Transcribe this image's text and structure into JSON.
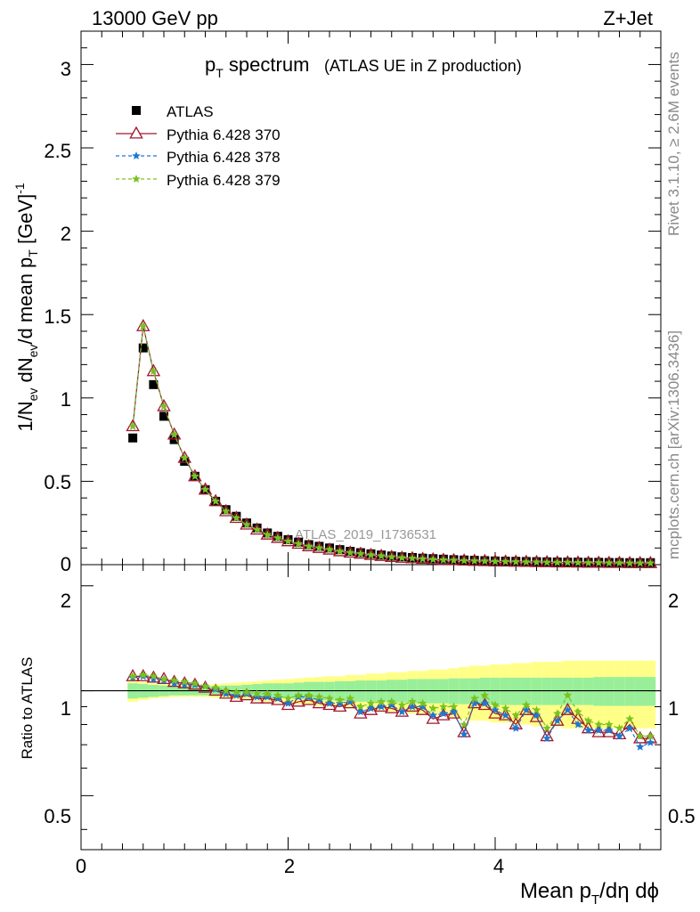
{
  "header": {
    "left": "13000 GeV pp",
    "right": "Z+Jet"
  },
  "title": {
    "main": "p",
    "main_sub": "T",
    "main_rest": " spectrum",
    "detail": "(ATLAS UE in Z production)"
  },
  "side_text": {
    "rivet": "Rivet 3.1.10, ≥ 2.6M events",
    "mcplots": "mcplots.cern.ch [arXiv:1306.3436]"
  },
  "watermark": "ATLAS_2019_I1736531",
  "axes": {
    "xlabel": "Mean p_T/dη dϕ",
    "ylabel_top": "1/N_ev dN_ev/d mean p_T [GeV]^-1",
    "ylabel_bottom": "Ratio to ATLAS",
    "x_ticks": [
      "0",
      "2",
      "4"
    ],
    "y_ticks_top": [
      "0",
      "0.5",
      "1",
      "1.5",
      "2",
      "2.5",
      "3"
    ],
    "y_ticks_bottom": [
      "0.5",
      "1",
      "2"
    ]
  },
  "legend": [
    {
      "label": "ATLAS",
      "color": "#000000",
      "marker": "square"
    },
    {
      "label": "Pythia 6.428 370",
      "color": "#a0182c",
      "marker": "triangle"
    },
    {
      "label": "Pythia 6.428 378",
      "color": "#1e78d2",
      "marker": "star"
    },
    {
      "label": "Pythia 6.428 379",
      "color": "#7ac21e",
      "marker": "star"
    }
  ],
  "chart_data": [
    {
      "type": "scatter",
      "panel": "main",
      "xlim": [
        0,
        5.6
      ],
      "ylim": [
        0,
        3.2
      ],
      "x": [
        0.5,
        0.6,
        0.7,
        0.8,
        0.9,
        1.0,
        1.1,
        1.2,
        1.3,
        1.4,
        1.5,
        1.6,
        1.7,
        1.8,
        1.9,
        2.0,
        2.1,
        2.2,
        2.3,
        2.4,
        2.5,
        2.6,
        2.7,
        2.8,
        2.9,
        3.0,
        3.1,
        3.2,
        3.3,
        3.4,
        3.5,
        3.6,
        3.7,
        3.8,
        3.9,
        4.0,
        4.1,
        4.2,
        4.3,
        4.4,
        4.5,
        4.6,
        4.7,
        4.8,
        4.9,
        5.0,
        5.1,
        5.2,
        5.3,
        5.4,
        5.5
      ],
      "series": [
        {
          "name": "ATLAS",
          "values": [
            0.76,
            1.3,
            1.08,
            0.89,
            0.75,
            0.62,
            0.53,
            0.45,
            0.38,
            0.33,
            0.29,
            0.25,
            0.22,
            0.19,
            0.17,
            0.15,
            0.135,
            0.12,
            0.11,
            0.1,
            0.09,
            0.08,
            0.072,
            0.065,
            0.058,
            0.052,
            0.047,
            0.043,
            0.039,
            0.036,
            0.033,
            0.03,
            0.028,
            0.026,
            0.024,
            0.022,
            0.021,
            0.02,
            0.019,
            0.018,
            0.017,
            0.016,
            0.015,
            0.015,
            0.014,
            0.014,
            0.013,
            0.013,
            0.012,
            0.012,
            0.012
          ]
        },
        {
          "name": "Pythia 6.428 370",
          "values": [
            0.83,
            1.43,
            1.16,
            0.95,
            0.78,
            0.64,
            0.53,
            0.45,
            0.38,
            0.32,
            0.28,
            0.24,
            0.21,
            0.18,
            0.16,
            0.14,
            0.125,
            0.11,
            0.1,
            0.09,
            0.08,
            0.072,
            0.065,
            0.058,
            0.052,
            0.046,
            0.041,
            0.038,
            0.034,
            0.031,
            0.028,
            0.026,
            0.024,
            0.022,
            0.021,
            0.019,
            0.018,
            0.017,
            0.016,
            0.015,
            0.014,
            0.013,
            0.013,
            0.012,
            0.011,
            0.011,
            0.01,
            0.01,
            0.009,
            0.009,
            0.009
          ]
        },
        {
          "name": "Pythia 6.428 378",
          "values": [
            0.83,
            1.43,
            1.16,
            0.95,
            0.78,
            0.64,
            0.53,
            0.45,
            0.38,
            0.32,
            0.28,
            0.24,
            0.21,
            0.18,
            0.16,
            0.14,
            0.125,
            0.11,
            0.1,
            0.09,
            0.08,
            0.072,
            0.065,
            0.058,
            0.052,
            0.046,
            0.041,
            0.038,
            0.034,
            0.031,
            0.028,
            0.026,
            0.024,
            0.022,
            0.021,
            0.019,
            0.018,
            0.017,
            0.016,
            0.015,
            0.014,
            0.013,
            0.013,
            0.012,
            0.011,
            0.011,
            0.01,
            0.01,
            0.009,
            0.009,
            0.009
          ]
        },
        {
          "name": "Pythia 6.428 379",
          "values": [
            0.83,
            1.43,
            1.16,
            0.95,
            0.78,
            0.64,
            0.53,
            0.45,
            0.38,
            0.32,
            0.28,
            0.24,
            0.21,
            0.18,
            0.16,
            0.14,
            0.125,
            0.11,
            0.1,
            0.09,
            0.08,
            0.072,
            0.065,
            0.058,
            0.052,
            0.046,
            0.041,
            0.038,
            0.034,
            0.031,
            0.028,
            0.026,
            0.024,
            0.022,
            0.021,
            0.019,
            0.018,
            0.017,
            0.016,
            0.015,
            0.014,
            0.013,
            0.013,
            0.012,
            0.011,
            0.011,
            0.01,
            0.01,
            0.009,
            0.009,
            0.009
          ]
        }
      ]
    },
    {
      "type": "scatter",
      "panel": "ratio",
      "xlim": [
        0,
        5.6
      ],
      "ylim": [
        0.35,
        2.3
      ],
      "log_y": true,
      "x": [
        0.5,
        0.6,
        0.7,
        0.8,
        0.9,
        1.0,
        1.1,
        1.2,
        1.3,
        1.4,
        1.5,
        1.6,
        1.7,
        1.8,
        1.9,
        2.0,
        2.1,
        2.2,
        2.3,
        2.4,
        2.5,
        2.6,
        2.7,
        2.8,
        2.9,
        3.0,
        3.1,
        3.2,
        3.3,
        3.4,
        3.5,
        3.6,
        3.7,
        3.8,
        3.9,
        4.0,
        4.1,
        4.2,
        4.3,
        4.4,
        4.5,
        4.6,
        4.7,
        4.8,
        4.9,
        5.0,
        5.1,
        5.2,
        5.3,
        5.4,
        5.5
      ],
      "band_inner": [
        0.05,
        0.045,
        0.04,
        0.035,
        0.03,
        0.03,
        0.03,
        0.03,
        0.03,
        0.035,
        0.035,
        0.04,
        0.045,
        0.05,
        0.05,
        0.05,
        0.055,
        0.06,
        0.06,
        0.06,
        0.065,
        0.065,
        0.07,
        0.07,
        0.07,
        0.075,
        0.075,
        0.08,
        0.08,
        0.08,
        0.08,
        0.085,
        0.085,
        0.085,
        0.09,
        0.09,
        0.09,
        0.09,
        0.09,
        0.09,
        0.09,
        0.09,
        0.09,
        0.09,
        0.09,
        0.095,
        0.095,
        0.095,
        0.095,
        0.095,
        0.095
      ],
      "band_outer": [
        0.07,
        0.06,
        0.05,
        0.045,
        0.04,
        0.04,
        0.04,
        0.04,
        0.045,
        0.05,
        0.055,
        0.06,
        0.065,
        0.07,
        0.075,
        0.08,
        0.085,
        0.09,
        0.095,
        0.1,
        0.1,
        0.11,
        0.11,
        0.12,
        0.12,
        0.13,
        0.13,
        0.14,
        0.14,
        0.15,
        0.15,
        0.16,
        0.17,
        0.18,
        0.18,
        0.19,
        0.19,
        0.2,
        0.2,
        0.21,
        0.21,
        0.21,
        0.22,
        0.22,
        0.22,
        0.22,
        0.22,
        0.22,
        0.22,
        0.22,
        0.22
      ],
      "series": [
        {
          "name": "Pythia 6.428 370",
          "values": [
            1.1,
            1.1,
            1.09,
            1.08,
            1.06,
            1.05,
            1.04,
            1.02,
            1.0,
            0.98,
            0.96,
            0.97,
            0.95,
            0.95,
            0.94,
            0.91,
            0.93,
            0.94,
            0.92,
            0.91,
            0.9,
            0.92,
            0.86,
            0.88,
            0.9,
            0.89,
            0.87,
            0.9,
            0.88,
            0.83,
            0.85,
            0.86,
            0.76,
            0.92,
            0.91,
            0.86,
            0.85,
            0.8,
            0.88,
            0.84,
            0.74,
            0.82,
            0.88,
            0.83,
            0.78,
            0.76,
            0.76,
            0.75,
            0.8,
            0.73,
            0.73
          ]
        },
        {
          "name": "Pythia 6.428 378",
          "values": [
            1.09,
            1.1,
            1.08,
            1.07,
            1.05,
            1.04,
            1.04,
            1.03,
            1.01,
            0.98,
            0.97,
            0.98,
            0.96,
            0.96,
            0.95,
            0.92,
            0.96,
            0.96,
            0.94,
            0.92,
            0.92,
            0.93,
            0.87,
            0.89,
            0.9,
            0.91,
            0.87,
            0.9,
            0.9,
            0.85,
            0.86,
            0.87,
            0.75,
            0.92,
            0.92,
            0.88,
            0.85,
            0.78,
            0.88,
            0.85,
            0.73,
            0.82,
            0.88,
            0.8,
            0.77,
            0.77,
            0.77,
            0.74,
            0.78,
            0.69,
            0.71
          ]
        },
        {
          "name": "Pythia 6.428 379",
          "values": [
            1.1,
            1.11,
            1.1,
            1.08,
            1.07,
            1.06,
            1.05,
            1.03,
            1.02,
            1.0,
            0.99,
            0.99,
            0.98,
            0.98,
            0.97,
            0.95,
            0.97,
            0.97,
            0.96,
            0.95,
            0.94,
            0.95,
            0.9,
            0.92,
            0.93,
            0.93,
            0.91,
            0.93,
            0.92,
            0.89,
            0.9,
            0.9,
            0.8,
            0.95,
            0.97,
            0.91,
            0.89,
            0.85,
            0.91,
            0.88,
            0.78,
            0.86,
            0.97,
            0.87,
            0.82,
            0.8,
            0.8,
            0.78,
            0.83,
            0.74,
            0.74
          ]
        }
      ]
    }
  ]
}
